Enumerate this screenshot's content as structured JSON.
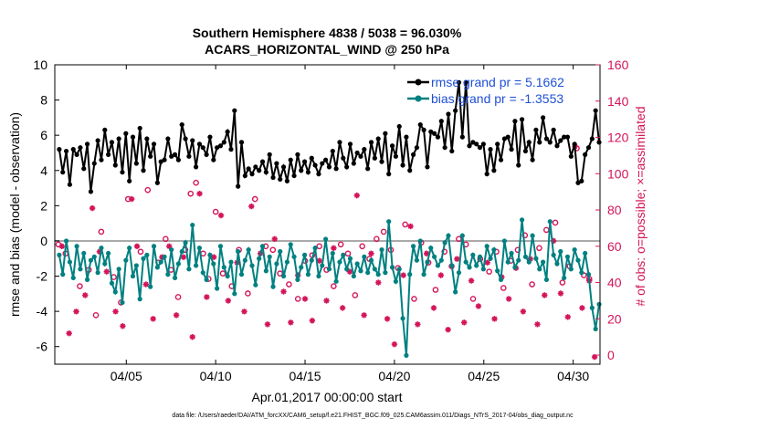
{
  "chart_data": {
    "type": "line",
    "title_line1": "Southern Hemisphere 4838 / 5038 = 96.030%",
    "title_line2": "ACARS_HORIZONTAL_WIND @ 250 hPa",
    "xlabel": "Apr.01,2017 00:00:00 start",
    "ylabel_left": "rmse and bias (model - observation)",
    "ylabel_right": "# of obs: o=possible; ×=assimilated",
    "footer": "data file: /Users/raeder/DAI/ATM_forcXX/CAM6_setup/f.e21.FHIST_BGC.f09_025.CAM6assim.011/Diags_NTrS_2017-04/obs_diag_output.nc",
    "xlim": [
      1.0,
      31.5
    ],
    "x_ticks": [
      5,
      10,
      15,
      20,
      25,
      30
    ],
    "x_tick_labels": [
      "04/05",
      "04/10",
      "04/15",
      "04/20",
      "04/25",
      "04/30"
    ],
    "ylim_left": [
      -7,
      10
    ],
    "y_ticks_left": [
      -6,
      -4,
      -2,
      0,
      2,
      4,
      6,
      8,
      10
    ],
    "y_tick_labels_left": [
      "-6",
      "-4",
      "-2",
      "0",
      "2",
      "4",
      "6",
      "8",
      "10"
    ],
    "ylim_right": [
      -5,
      160
    ],
    "y_ticks_right": [
      0,
      20,
      40,
      60,
      80,
      100,
      120,
      140,
      160
    ],
    "y_tick_labels_right": [
      "0",
      "20",
      "40",
      "60",
      "80",
      "100",
      "120",
      "140",
      "160"
    ],
    "grid": false,
    "legend_position": "top-right",
    "colors": {
      "rmse": "#000000",
      "bias": "#008080",
      "obs": "#d4145a",
      "legend_text": "#1f4fd6",
      "zero_line": "#aaaaaa"
    },
    "series": [
      {
        "name": "rmse grand pr = 5.1662",
        "axis": "left",
        "values": [
          5.2,
          3.9,
          5.1,
          3.2,
          5.2,
          4.9,
          5.3,
          4.1,
          5.5,
          2.8,
          4.4,
          5.7,
          4.6,
          6.3,
          4.9,
          5.6,
          4.3,
          5.8,
          3.9,
          6.1,
          3.4,
          5.9,
          4.4,
          6.4,
          4.0,
          5.8,
          4.8,
          5.5,
          3.3,
          4.5,
          4.6,
          5.8,
          4.8,
          4.9,
          4.6,
          6.6,
          5.8,
          4.8,
          5.7,
          4.2,
          5.5,
          5.3,
          4.9,
          5.9,
          4.6,
          5.3,
          5.4,
          5.6,
          6.2,
          5.2,
          7.4,
          3.1,
          5.6,
          3.7,
          4.1,
          3.8,
          4.2,
          4.0,
          4.5,
          3.9,
          4.9,
          3.6,
          4.4,
          3.5,
          4.2,
          3.4,
          4.6,
          3.7,
          4.9,
          4.0,
          4.5,
          3.9,
          4.7,
          4.3,
          3.8,
          4.4,
          4.6,
          4.2,
          5.1,
          4.1,
          5.6,
          4.7,
          4.2,
          5.5,
          4.4,
          5.0,
          4.8,
          5.2,
          4.1,
          5.6,
          4.7,
          5.8,
          4.5,
          6.1,
          3.8,
          5.4,
          4.8,
          6.5,
          4.3,
          5.9,
          4.0,
          4.9,
          5.3,
          6.6,
          6.3,
          4.2,
          6.2,
          6.1,
          5.9,
          6.8,
          5.3,
          7.2,
          5.1,
          7.4,
          9.0,
          5.9,
          9.0,
          5.4,
          5.6,
          5.5,
          5.3,
          5.5,
          3.8,
          5.2,
          4.0,
          5.5,
          4.6,
          5.8,
          5.9,
          5.2,
          6.8,
          4.3,
          6.9,
          5.1,
          5.6,
          4.6,
          6.3,
          5.6,
          7.0,
          5.8,
          5.6,
          6.3,
          5.4,
          5.7,
          5.9,
          5.9,
          4.8,
          5.5,
          3.3,
          3.4,
          4.9,
          5.3,
          5.8,
          7.4,
          5.6
        ]
      },
      {
        "name": "bias grand pr = -1.3553",
        "axis": "left",
        "values": [
          -0.8,
          -1.9,
          0.0,
          -1.2,
          -2.1,
          -0.3,
          -1.6,
          -0.7,
          -2.2,
          -1.1,
          -0.9,
          -1.8,
          -0.4,
          -1.3,
          -0.7,
          -2.4,
          -2.9,
          -1.6,
          -3.5,
          -1.1,
          -0.4,
          -2.0,
          -1.4,
          -3.3,
          -1.0,
          -0.8,
          -2.6,
          -0.3,
          -1.5,
          -1.2,
          -0.9,
          -1.9,
          -0.5,
          -2.1,
          -1.3,
          -0.6,
          -0.1,
          -1.6,
          0.9,
          -1.4,
          -0.4,
          -1.8,
          -2.2,
          -0.8,
          -1.3,
          -2.7,
          -0.3,
          -1.5,
          -2.0,
          -1.2,
          -3.0,
          -0.6,
          -1.9,
          -1.1,
          -0.5,
          -1.4,
          -2.5,
          -1.0,
          -0.3,
          -1.7,
          -0.9,
          -2.6,
          -1.3,
          -0.6,
          -2.0,
          -1.2,
          -0.2,
          -0.9,
          -2.2,
          -1.5,
          -0.8,
          -1.9,
          -1.1,
          -0.4,
          -2.0,
          -1.4,
          0.1,
          -1.6,
          -0.7,
          -2.3,
          -1.2,
          -0.8,
          -1.6,
          -1.0,
          -2.0,
          -1.3,
          -1.7,
          -0.9,
          -1.8,
          -1.1,
          -1.6,
          -1.9,
          -0.5,
          -1.8,
          1.1,
          -1.5,
          -2.3,
          -1.6,
          -4.4,
          -6.5,
          -1.9,
          -0.3,
          -1.1,
          0.0,
          -1.9,
          -1.2,
          -0.4,
          -0.9,
          -1.4,
          -1.1,
          -0.1,
          0.3,
          -1.4,
          -2.9,
          -1.8,
          0.3,
          -1.2,
          -1.5,
          -0.8,
          -1.4,
          -0.9,
          -1.6,
          -0.3,
          -1.0,
          -0.5,
          -1.7,
          -2.2,
          0.0,
          -1.2,
          -0.7,
          -1.5,
          -1.1,
          1.2,
          -0.9,
          -1.2,
          0.3,
          -1.0,
          -1.6,
          -1.2,
          -2.2,
          1.1,
          -0.8,
          -1.3,
          -0.6,
          -2.1,
          -0.9,
          -1.6,
          -0.5,
          -1.1,
          -1.8,
          -0.7,
          -1.9,
          -3.8,
          -5.0,
          -3.6
        ]
      },
      {
        "name": "possible",
        "axis": "right",
        "marker": "o",
        "points": [
          [
            1.2,
            61
          ],
          [
            1.6,
            56
          ],
          [
            2.4,
            38
          ],
          [
            2.9,
            47
          ],
          [
            3.3,
            22
          ],
          [
            3.6,
            68
          ],
          [
            4.3,
            43
          ],
          [
            4.7,
            29
          ],
          [
            5.1,
            86
          ],
          [
            5.8,
            57
          ],
          [
            6.2,
            91
          ],
          [
            6.8,
            51
          ],
          [
            7.2,
            64
          ],
          [
            7.5,
            47
          ],
          [
            7.9,
            32
          ],
          [
            8.3,
            58
          ],
          [
            8.6,
            89
          ],
          [
            8.9,
            95
          ],
          [
            9.3,
            56
          ],
          [
            9.6,
            42
          ],
          [
            10.0,
            79
          ],
          [
            10.4,
            45
          ],
          [
            10.9,
            38
          ],
          [
            11.3,
            58
          ],
          [
            11.8,
            34
          ],
          [
            12.2,
            86
          ],
          [
            12.8,
            60
          ],
          [
            13.2,
            58
          ],
          [
            13.6,
            45
          ],
          [
            14.1,
            39
          ],
          [
            14.6,
            31
          ],
          [
            15.0,
            52
          ],
          [
            15.4,
            55
          ],
          [
            15.8,
            60
          ],
          [
            16.2,
            47
          ],
          [
            16.6,
            38
          ],
          [
            17.0,
            61
          ],
          [
            17.4,
            56
          ],
          [
            17.8,
            33
          ],
          [
            18.2,
            60
          ],
          [
            18.6,
            53
          ],
          [
            19.0,
            64
          ],
          [
            19.4,
            68
          ],
          [
            19.8,
            58
          ],
          [
            20.2,
            48
          ],
          [
            20.6,
            72
          ],
          [
            21.1,
            31
          ],
          [
            21.5,
            62
          ],
          [
            21.9,
            51
          ],
          [
            22.3,
            36
          ],
          [
            22.8,
            57
          ],
          [
            23.2,
            49
          ],
          [
            23.6,
            64
          ],
          [
            24.0,
            61
          ],
          [
            24.4,
            31
          ],
          [
            24.8,
            53
          ],
          [
            25.3,
            46
          ],
          [
            25.7,
            57
          ],
          [
            26.1,
            37
          ],
          [
            26.5,
            52
          ],
          [
            26.9,
            58
          ],
          [
            27.3,
            66
          ],
          [
            27.7,
            39
          ],
          [
            28.1,
            59
          ],
          [
            28.5,
            69
          ],
          [
            29.0,
            73
          ],
          [
            29.4,
            40
          ],
          [
            29.8,
            49
          ],
          [
            30.2,
            114
          ],
          [
            30.6,
            44
          ],
          [
            30.9,
            42
          ]
        ]
      },
      {
        "name": "assimilated",
        "axis": "right",
        "marker": "*",
        "points": [
          [
            1.4,
            60
          ],
          [
            1.8,
            12
          ],
          [
            2.2,
            24
          ],
          [
            2.7,
            33
          ],
          [
            3.1,
            81
          ],
          [
            3.5,
            57
          ],
          [
            3.9,
            46
          ],
          [
            4.4,
            24
          ],
          [
            4.8,
            16
          ],
          [
            5.3,
            86
          ],
          [
            5.6,
            60
          ],
          [
            6.1,
            39
          ],
          [
            6.5,
            20
          ],
          [
            7.0,
            54
          ],
          [
            7.4,
            60
          ],
          [
            7.8,
            22
          ],
          [
            8.2,
            54
          ],
          [
            8.7,
            10
          ],
          [
            9.1,
            89
          ],
          [
            9.5,
            32
          ],
          [
            9.9,
            54
          ],
          [
            10.3,
            77
          ],
          [
            10.7,
            30
          ],
          [
            11.2,
            51
          ],
          [
            11.6,
            24
          ],
          [
            12.0,
            82
          ],
          [
            12.5,
            56
          ],
          [
            12.9,
            17
          ],
          [
            13.3,
            64
          ],
          [
            13.8,
            35
          ],
          [
            14.2,
            18
          ],
          [
            14.6,
            44
          ],
          [
            15.0,
            31
          ],
          [
            15.4,
            19
          ],
          [
            15.8,
            52
          ],
          [
            16.2,
            30
          ],
          [
            16.6,
            59
          ],
          [
            17.1,
            26
          ],
          [
            17.5,
            46
          ],
          [
            17.9,
            88
          ],
          [
            18.3,
            22
          ],
          [
            18.7,
            56
          ],
          [
            19.1,
            40
          ],
          [
            19.6,
            20
          ],
          [
            20.0,
            6
          ],
          [
            20.5,
            44
          ],
          [
            20.9,
            71
          ],
          [
            21.3,
            17
          ],
          [
            21.8,
            56
          ],
          [
            22.2,
            26
          ],
          [
            22.6,
            44
          ],
          [
            23.0,
            14
          ],
          [
            23.5,
            53
          ],
          [
            23.9,
            18
          ],
          [
            24.3,
            41
          ],
          [
            24.7,
            27
          ],
          [
            25.2,
            51
          ],
          [
            25.6,
            20
          ],
          [
            26.0,
            43
          ],
          [
            26.4,
            31
          ],
          [
            26.8,
            48
          ],
          [
            27.2,
            24
          ],
          [
            27.6,
            53
          ],
          [
            28.0,
            17
          ],
          [
            28.4,
            33
          ],
          [
            28.9,
            63
          ],
          [
            29.3,
            34
          ],
          [
            29.7,
            21
          ],
          [
            30.1,
            115
          ],
          [
            30.5,
            26
          ],
          [
            30.9,
            41
          ],
          [
            31.2,
            -1
          ]
        ]
      }
    ]
  }
}
